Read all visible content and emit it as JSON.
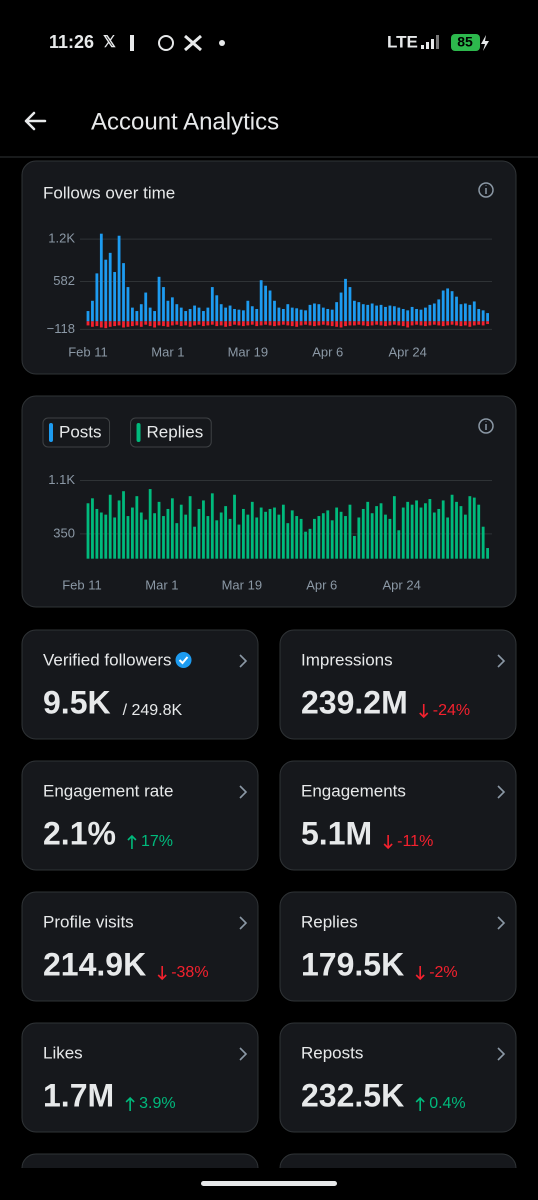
{
  "status_bar": {
    "time": "11:26",
    "network": "LTE",
    "battery": "85"
  },
  "header": {
    "title": "Account Analytics"
  },
  "chart_data": [
    {
      "type": "bar",
      "title": "Follows over time",
      "categories": [
        "Feb 11",
        null,
        null,
        null,
        null,
        null,
        null,
        null,
        null,
        null,
        null,
        null,
        null,
        null,
        null,
        null,
        null,
        null,
        "Mar 1",
        null,
        null,
        null,
        null,
        null,
        null,
        null,
        null,
        null,
        null,
        null,
        null,
        null,
        null,
        null,
        null,
        null,
        "Mar 19",
        null,
        null,
        null,
        null,
        null,
        null,
        null,
        null,
        null,
        null,
        null,
        null,
        null,
        null,
        null,
        null,
        null,
        "Apr 6",
        null,
        null,
        null,
        null,
        null,
        null,
        null,
        null,
        null,
        null,
        null,
        null,
        null,
        null,
        null,
        null,
        null,
        "Apr 24",
        null,
        null,
        null,
        null,
        null,
        null,
        null,
        null,
        null,
        null,
        null,
        null,
        null,
        null,
        null,
        null,
        null,
        null
      ],
      "series": [
        {
          "color": "#1d9bf0",
          "values": [
            150,
            300,
            700,
            1280,
            900,
            1000,
            720,
            1250,
            850,
            500,
            200,
            150,
            250,
            420,
            200,
            150,
            650,
            500,
            300,
            350,
            250,
            200,
            150,
            180,
            230,
            200,
            150,
            200,
            500,
            380,
            250,
            200,
            230,
            180,
            170,
            160,
            300,
            220,
            180,
            600,
            520,
            450,
            300,
            200,
            180,
            250,
            200,
            190,
            170,
            160,
            240,
            260,
            250,
            200,
            180,
            170,
            280,
            420,
            620,
            500,
            300,
            280,
            250,
            240,
            260,
            230,
            240,
            210,
            230,
            220,
            200,
            180,
            160,
            210,
            180,
            170,
            200,
            240,
            260,
            320,
            450,
            480,
            440,
            360,
            250,
            260,
            240,
            290,
            180,
            160,
            120
          ]
        },
        {
          "color": "#f4212e",
          "values": [
            -60,
            -80,
            -70,
            -90,
            -100,
            -80,
            -70,
            -60,
            -90,
            -80,
            -70,
            -60,
            -80,
            -50,
            -70,
            -90,
            -60,
            -70,
            -80,
            -60,
            -50,
            -70,
            -60,
            -80,
            -60,
            -50,
            -70,
            -60,
            -50,
            -70,
            -60,
            -80,
            -70,
            -50,
            -60,
            -70,
            -60,
            -50,
            -70,
            -60,
            -50,
            -60,
            -70,
            -60,
            -50,
            -60,
            -70,
            -80,
            -60,
            -50,
            -60,
            -70,
            -60,
            -50,
            -60,
            -70,
            -80,
            -90,
            -70,
            -60,
            -60,
            -50,
            -60,
            -70,
            -60,
            -50,
            -60,
            -70,
            -60,
            -50,
            -60,
            -70,
            -90,
            -60,
            -50,
            -60,
            -70,
            -60,
            -50,
            -60,
            -70,
            -60,
            -50,
            -60,
            -70,
            -60,
            -80,
            -60,
            -50,
            -60,
            -40
          ]
        }
      ],
      "ylim": [
        -200,
        1290
      ],
      "yticks": [
        {
          "value": 1200,
          "label": "1.2K"
        },
        582,
        {
          "value": -118,
          "label": "−118"
        }
      ],
      "grid": true
    },
    {
      "type": "bar",
      "legend": [
        {
          "name": "Posts",
          "color": "#1d9bf0"
        },
        {
          "name": "Replies",
          "color": "#00ba7c"
        }
      ],
      "categories": [
        "Feb 11",
        null,
        null,
        null,
        null,
        null,
        null,
        null,
        null,
        null,
        null,
        null,
        null,
        null,
        null,
        null,
        null,
        null,
        "Mar 1",
        null,
        null,
        null,
        null,
        null,
        null,
        null,
        null,
        null,
        null,
        null,
        null,
        null,
        null,
        null,
        null,
        null,
        "Mar 19",
        null,
        null,
        null,
        null,
        null,
        null,
        null,
        null,
        null,
        null,
        null,
        null,
        null,
        null,
        null,
        null,
        null,
        "Apr 6",
        null,
        null,
        null,
        null,
        null,
        null,
        null,
        null,
        null,
        null,
        null,
        null,
        null,
        null,
        null,
        null,
        null,
        "Apr 24",
        null,
        null,
        null,
        null,
        null,
        null,
        null,
        null,
        null,
        null,
        null,
        null,
        null,
        null,
        null,
        null,
        null,
        null
      ],
      "series": [
        {
          "legend": 1,
          "color": "#00ba7c",
          "values": [
            780,
            850,
            700,
            650,
            620,
            900,
            580,
            820,
            950,
            600,
            720,
            880,
            650,
            550,
            980,
            640,
            800,
            600,
            700,
            850,
            500,
            760,
            620,
            880,
            450,
            700,
            820,
            600,
            920,
            540,
            650,
            740,
            560,
            900,
            480,
            700,
            620,
            800,
            580,
            720,
            660,
            700,
            720,
            620,
            760,
            500,
            680,
            600,
            560,
            380,
            420,
            560,
            600,
            640,
            680,
            540,
            720,
            660,
            600,
            760,
            320,
            580,
            700,
            800,
            640,
            740,
            780,
            620,
            560,
            880,
            400,
            720,
            800,
            760,
            820,
            720,
            780,
            840,
            650,
            700,
            820,
            580,
            900,
            800,
            740,
            620,
            880,
            860,
            760,
            450,
            150
          ]
        }
      ],
      "ylim": [
        -75,
        1150
      ],
      "yticks": [
        {
          "value": 1100,
          "label": "1.1K"
        },
        350
      ],
      "grid": true
    }
  ],
  "metrics": [
    {
      "label": "Verified followers",
      "verified": true,
      "value": "9.5K",
      "total": "/ 249.8K"
    },
    {
      "label": "Impressions",
      "value": "239.2M",
      "change": "-24%",
      "direction": "down"
    },
    {
      "label": "Engagement rate",
      "value": "2.1%",
      "change": "17%",
      "direction": "up"
    },
    {
      "label": "Engagements",
      "value": "5.1M",
      "change": "-11%",
      "direction": "down"
    },
    {
      "label": "Profile visits",
      "value": "214.9K",
      "change": "-38%",
      "direction": "down"
    },
    {
      "label": "Replies",
      "value": "179.5K",
      "change": "-2%",
      "direction": "down"
    },
    {
      "label": "Likes",
      "value": "1.7M",
      "change": "3.9%",
      "direction": "up"
    },
    {
      "label": "Reposts",
      "value": "232.5K",
      "change": "0.4%",
      "direction": "up"
    }
  ]
}
